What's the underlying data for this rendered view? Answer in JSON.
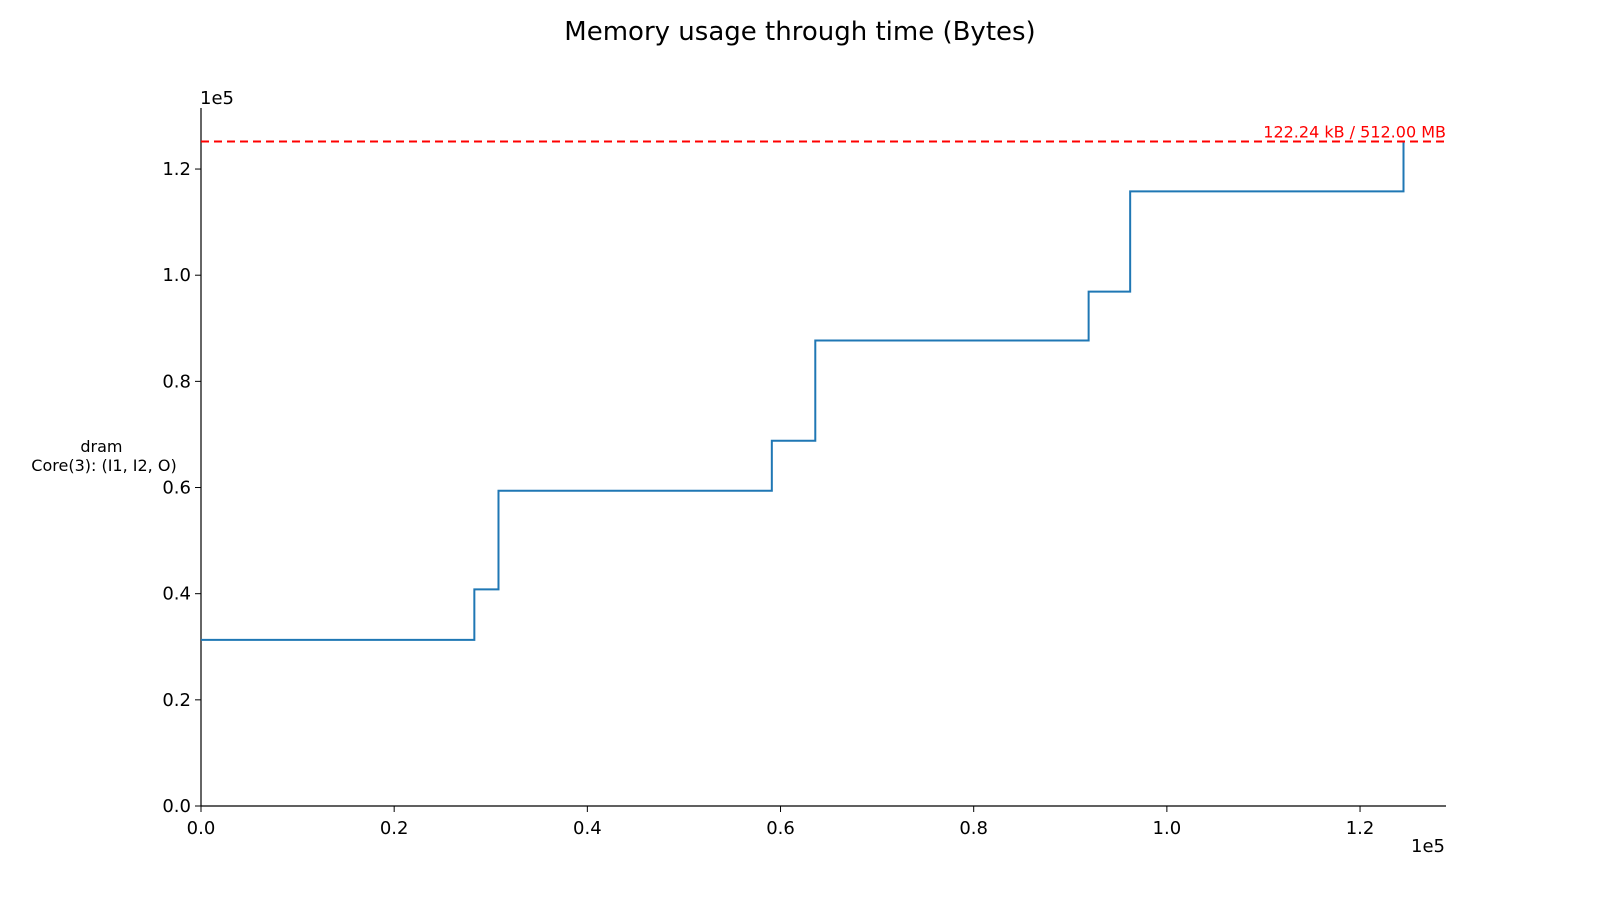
{
  "chart_data": {
    "type": "line",
    "line_style": "step-post",
    "title": "Memory usage through time (Bytes)",
    "xlabel": "",
    "ylabel_lines": [
      "dram",
      "Core(3): (I1, I2, O)"
    ],
    "x_offset_label": "1e5",
    "y_offset_label": "1e5",
    "xlim": [
      0,
      128900
    ],
    "ylim": [
      0,
      131500
    ],
    "x_ticks": [
      0,
      20000,
      40000,
      60000,
      80000,
      100000,
      120000
    ],
    "x_tick_labels": [
      "0.0",
      "0.2",
      "0.4",
      "0.6",
      "0.8",
      "1.0",
      "1.2"
    ],
    "y_ticks": [
      0,
      20000,
      40000,
      60000,
      80000,
      100000,
      120000
    ],
    "y_tick_labels": [
      "0.0",
      "0.2",
      "0.4",
      "0.6",
      "0.8",
      "1.0",
      "1.2"
    ],
    "grid": false,
    "series": [
      {
        "color": "#1f77b4",
        "x": [
          0,
          28300,
          30800,
          59100,
          63600,
          91900,
          96200,
          124500,
          124500
        ],
        "y": [
          31300,
          40800,
          59400,
          68800,
          87700,
          96900,
          115800,
          115800,
          125200
        ]
      }
    ],
    "limit_line": {
      "value": 125200,
      "label": "122.24 kB / 512.00 MB",
      "color": "#ff0000",
      "style": "dashed"
    }
  }
}
